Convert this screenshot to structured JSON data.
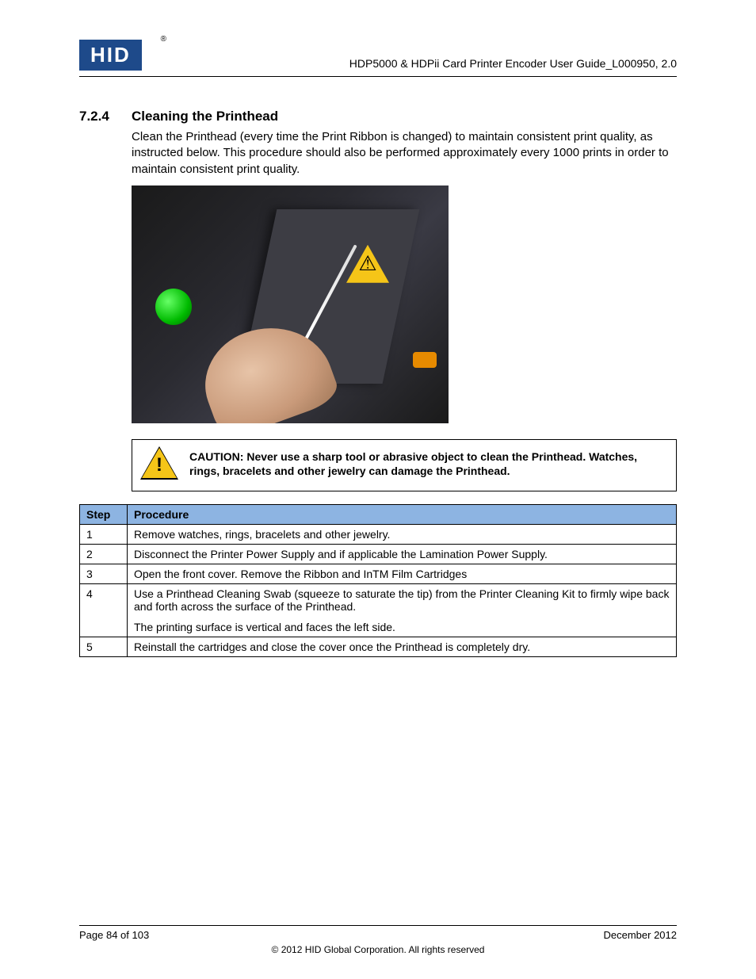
{
  "header": {
    "logo_text": "HID",
    "doc_title": "HDP5000 & HDPii Card Printer Encoder User Guide_L000950, 2.0"
  },
  "section": {
    "number": "7.2.4",
    "title": "Cleaning the Printhead",
    "body": "Clean the Printhead (every time the Print Ribbon is changed) to maintain consistent print quality, as instructed below. This procedure should also be performed approximately every 1000 prints in order to maintain consistent print quality."
  },
  "caution": {
    "label": "CAUTION:",
    "text": "Never use a sharp tool or abrasive object to clean the Printhead. Watches, rings, bracelets and other jewelry can damage the Printhead."
  },
  "table": {
    "header_bg": "#8db4e2",
    "columns": [
      "Step",
      "Procedure"
    ],
    "rows": [
      {
        "step": "1",
        "proc": "Remove watches, rings, bracelets and other jewelry."
      },
      {
        "step": "2",
        "proc": "Disconnect the Printer Power Supply and if applicable the Lamination Power Supply."
      },
      {
        "step": "3",
        "proc": "Open the front cover. Remove the Ribbon and InTM Film Cartridges"
      },
      {
        "step": "4",
        "proc": "Use a Printhead Cleaning Swab (squeeze to saturate the tip) from the Printer Cleaning Kit to firmly wipe back and forth across the surface of the Printhead.",
        "extra": "The printing surface is vertical and faces the left side."
      },
      {
        "step": "5",
        "proc": "Reinstall the cartridges and close the cover once the Printhead is completely dry."
      }
    ]
  },
  "footer": {
    "page": "Page 84 of 103",
    "date": "December 2012",
    "copyright": "© 2012 HID Global Corporation. All rights reserved"
  }
}
